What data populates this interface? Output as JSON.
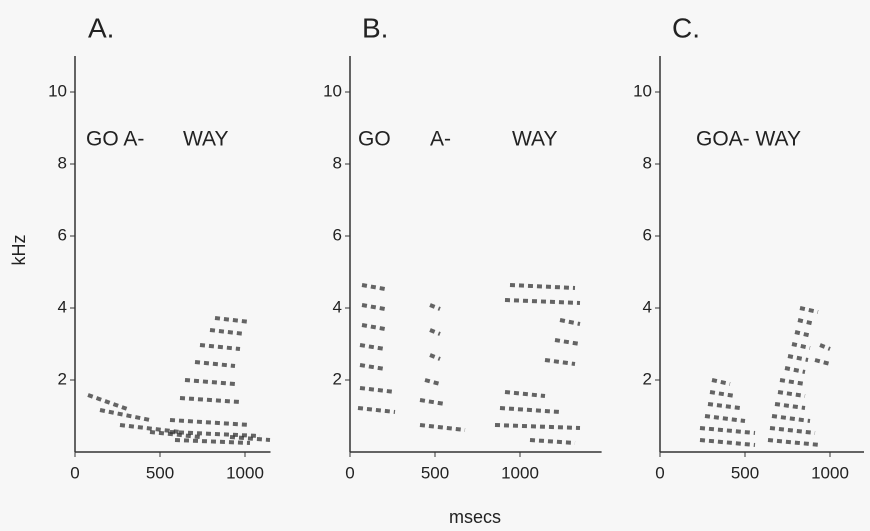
{
  "y_label": "kHz",
  "x_label": "msecs",
  "chart_data": [
    {
      "type": "spectrogram",
      "title": "A.",
      "annotations": [
        "GO A-",
        "WAY"
      ],
      "xlim": [
        0,
        1150
      ],
      "xticks": [
        0,
        500,
        1000
      ],
      "ylim": [
        0,
        11
      ],
      "yticks": [
        2,
        4,
        6,
        8,
        10
      ]
    },
    {
      "type": "spectrogram",
      "title": "B.",
      "annotations": [
        "GO",
        "A-",
        "WAY"
      ],
      "xlim": [
        0,
        1480
      ],
      "xticks": [
        0,
        500,
        1000
      ],
      "ylim": [
        0,
        11
      ],
      "yticks": [
        2,
        4,
        6,
        8,
        10
      ]
    },
    {
      "type": "spectrogram",
      "title": "C.",
      "annotations": [
        "GOA- WAY"
      ],
      "xlim": [
        0,
        1200
      ],
      "xticks": [
        0,
        500,
        1000
      ],
      "ylim": [
        0,
        11
      ],
      "yticks": [
        2,
        4,
        6,
        8,
        10
      ]
    }
  ]
}
